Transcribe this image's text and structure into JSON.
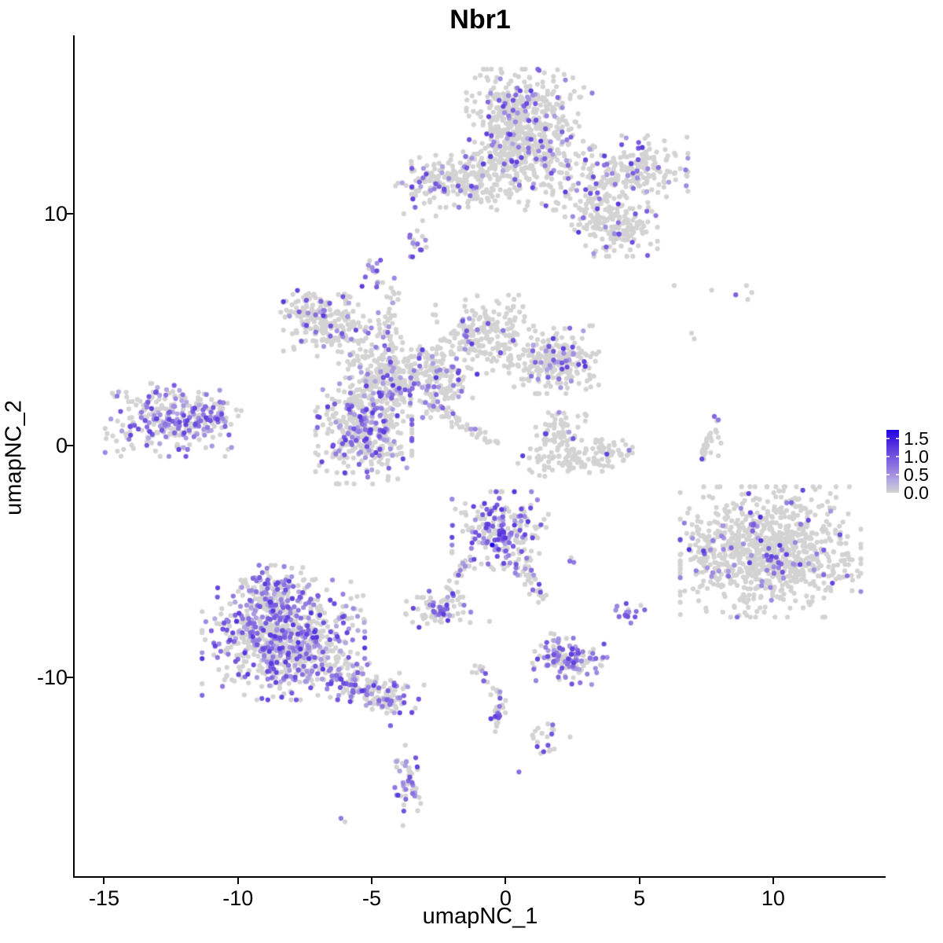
{
  "title": "Nbr1",
  "colors": {
    "background": "#ffffff",
    "axis": "#000000",
    "point_low": "#d3d3d3",
    "point_high": "#2004e8"
  },
  "legend": {
    "max_value": 1.75,
    "ticks": [
      {
        "label": "1.5",
        "value": 1.5
      },
      {
        "label": "1.0",
        "value": 1.0
      },
      {
        "label": "0.5",
        "value": 0.5
      },
      {
        "label": "0.0",
        "value": 0.0
      }
    ]
  },
  "chart_data": {
    "type": "scatter",
    "title": "Nbr1",
    "xlabel": "umapNC_1",
    "ylabel": "umapNC_2",
    "xlim": [
      -16.1,
      14.2
    ],
    "ylim": [
      -18.6,
      17.7
    ],
    "x_ticks": [
      -15,
      -10,
      -5,
      0,
      5,
      10
    ],
    "y_ticks": [
      -10,
      0,
      10
    ],
    "grid": false,
    "legend_position": "right",
    "point_radius_px": 3.1,
    "color_scale": {
      "domain": [
        0,
        1.75
      ],
      "stops": [
        [
          0.0,
          "#d3d3d3"
        ],
        [
          0.35,
          "#b2a6e2"
        ],
        [
          0.7,
          "#9179e0"
        ],
        [
          1.1,
          "#6a4ade"
        ],
        [
          1.45,
          "#4423dd"
        ],
        [
          1.75,
          "#2004e8"
        ]
      ]
    },
    "default_expr_range": [
      0.35,
      1.25
    ],
    "clusters": [
      {
        "name": "top-core",
        "shape": "gauss",
        "cx": 0.9,
        "cy": 13.2,
        "sdx": 1.05,
        "sdy": 1.35,
        "n": 520,
        "frac": 0.13
      },
      {
        "name": "top-core-upper",
        "shape": "gauss",
        "cx": 0.1,
        "cy": 14.4,
        "sdx": 0.6,
        "sdy": 0.75,
        "n": 150,
        "frac": 0.13
      },
      {
        "name": "top-left-arm",
        "shape": "gauss",
        "cx": -2.2,
        "cy": 11.4,
        "sdx": 0.85,
        "sdy": 0.5,
        "n": 170,
        "frac": 0.16
      },
      {
        "name": "top-join",
        "shape": "gauss",
        "cx": -0.7,
        "cy": 11.9,
        "sdx": 0.6,
        "sdy": 0.65,
        "n": 90,
        "frac": 0.1
      },
      {
        "name": "top-right-arm-upper",
        "shape": "gauss",
        "cx": 4.9,
        "cy": 11.8,
        "sdx": 0.85,
        "sdy": 0.7,
        "n": 190,
        "frac": 0.15
      },
      {
        "name": "top-right-arm-lower",
        "shape": "gauss",
        "cx": 4.1,
        "cy": 9.4,
        "sdx": 0.7,
        "sdy": 0.55,
        "n": 150,
        "frac": 0.12
      },
      {
        "name": "top-right-join",
        "shape": "gauss",
        "cx": 3.4,
        "cy": 10.7,
        "sdx": 0.55,
        "sdy": 0.65,
        "n": 90,
        "frac": 0.1
      },
      {
        "name": "blob-upper-small",
        "shape": "gauss",
        "cx": -3.2,
        "cy": 8.7,
        "sdx": 0.25,
        "sdy": 0.3,
        "n": 14,
        "frac": 0.5,
        "expr_range": [
          0.5,
          1.2
        ]
      },
      {
        "name": "blob-upper-small-2",
        "shape": "gauss",
        "cx": -4.8,
        "cy": 7.4,
        "sdx": 0.3,
        "sdy": 0.35,
        "n": 16,
        "frac": 0.6,
        "expr_range": [
          0.5,
          1.2
        ]
      },
      {
        "name": "sparse-top-arm",
        "shape": "dots",
        "points": [
          [
            -3.8,
            10.0,
            0
          ],
          [
            -3.1,
            9.7,
            0
          ],
          [
            -2.6,
            9.9,
            0
          ]
        ]
      },
      {
        "name": "central-strand-up",
        "shape": "strand",
        "x1": -4.2,
        "y1": 6.7,
        "x2": -4.4,
        "y2": 4.7,
        "w": 0.18,
        "n": 30,
        "frac": 0.15
      },
      {
        "name": "central-left-arm",
        "shape": "gauss",
        "cx": -6.5,
        "cy": 5.2,
        "sdx": 0.8,
        "sdy": 0.6,
        "n": 170,
        "frac": 0.13
      },
      {
        "name": "central-left-arm-tip",
        "shape": "gauss",
        "cx": -7.5,
        "cy": 5.9,
        "sdx": 0.4,
        "sdy": 0.35,
        "n": 55,
        "frac": 0.15
      },
      {
        "name": "central-knot",
        "shape": "gauss",
        "cx": -4.1,
        "cy": 3.0,
        "sdx": 0.95,
        "sdy": 0.8,
        "n": 330,
        "frac": 0.2
      },
      {
        "name": "central-upper-right-arm",
        "shape": "gauss",
        "cx": -0.8,
        "cy": 4.8,
        "sdx": 0.85,
        "sdy": 0.75,
        "n": 210,
        "frac": 0.12
      },
      {
        "name": "central-right-blob",
        "shape": "gauss",
        "cx": 1.8,
        "cy": 3.7,
        "sdx": 0.75,
        "sdy": 0.65,
        "n": 240,
        "frac": 0.15
      },
      {
        "name": "central-connector",
        "shape": "gauss",
        "cx": -2.3,
        "cy": 2.9,
        "sdx": 0.55,
        "sdy": 0.6,
        "n": 90,
        "frac": 0.12
      },
      {
        "name": "central-lower-left",
        "shape": "gauss",
        "cx": -5.3,
        "cy": 0.7,
        "sdx": 0.8,
        "sdy": 1.05,
        "n": 390,
        "frac": 0.3
      },
      {
        "name": "central-streak",
        "shape": "strand",
        "x1": -2.9,
        "y1": 1.8,
        "x2": -0.4,
        "y2": 0.1,
        "w": 0.12,
        "n": 50,
        "frac": 0.12
      },
      {
        "name": "left-cluster",
        "shape": "gauss",
        "cx": -12.6,
        "cy": 1.1,
        "sdx": 1.05,
        "sdy": 0.7,
        "n": 270,
        "frac": 0.45,
        "expr_range": [
          0.3,
          1.2
        ]
      },
      {
        "name": "left-cluster-tip",
        "shape": "gauss",
        "cx": -11.0,
        "cy": 1.35,
        "sdx": 0.5,
        "sdy": 0.28,
        "n": 50,
        "frac": 0.5,
        "expr_range": [
          0.3,
          1.2
        ]
      },
      {
        "name": "crescent-left",
        "shape": "gauss",
        "cx": 2.0,
        "cy": 0.7,
        "sdx": 0.45,
        "sdy": 0.4,
        "n": 60,
        "frac": 0.08
      },
      {
        "name": "crescent-bottom",
        "shape": "gauss",
        "cx": 2.6,
        "cy": -0.55,
        "sdx": 0.95,
        "sdy": 0.35,
        "n": 110,
        "frac": 0.05
      },
      {
        "name": "crescent-right",
        "shape": "gauss",
        "cx": 3.9,
        "cy": -0.2,
        "sdx": 0.28,
        "sdy": 0.38,
        "n": 25,
        "frac": 0.05
      },
      {
        "name": "right-arc",
        "shape": "strand",
        "x1": 7.85,
        "y1": 1.1,
        "x2": 7.35,
        "y2": -0.55,
        "w": 0.12,
        "n": 26,
        "frac": 0.1
      },
      {
        "name": "right-arc-cap",
        "shape": "dots",
        "points": [
          [
            7.8,
            1.25,
            0.85
          ],
          [
            7.95,
            1.1,
            0.7
          ]
        ]
      },
      {
        "name": "right-arc-side-dots",
        "shape": "dots",
        "points": [
          [
            7.95,
            0.35,
            0
          ],
          [
            8.05,
            0.1,
            0
          ],
          [
            7.95,
            -0.45,
            0
          ]
        ]
      },
      {
        "name": "right-big",
        "shape": "gauss",
        "cx": 9.9,
        "cy": -4.6,
        "sdx": 1.5,
        "sdy": 1.25,
        "n": 880,
        "frac": 0.09,
        "expr_range": [
          0.4,
          1.4
        ]
      },
      {
        "name": "right-big-appendage",
        "shape": "gauss",
        "cx": 7.4,
        "cy": -4.5,
        "sdx": 0.3,
        "sdy": 0.55,
        "n": 40,
        "frac": 0.1
      },
      {
        "name": "center-small",
        "shape": "gauss",
        "cx": -0.2,
        "cy": -3.8,
        "sdx": 0.8,
        "sdy": 0.8,
        "n": 230,
        "frac": 0.45,
        "expr_range": [
          0.4,
          1.3
        ]
      },
      {
        "name": "center-small-max-dot",
        "shape": "dots",
        "points": [
          [
            -0.5,
            -4.3,
            1.75
          ]
        ]
      },
      {
        "name": "center-strand-left",
        "shape": "strand",
        "x1": -1.3,
        "y1": -5.0,
        "x2": -2.3,
        "y2": -6.3,
        "w": 0.12,
        "n": 22,
        "frac": 0.3
      },
      {
        "name": "center-strand-right",
        "shape": "strand",
        "x1": 0.4,
        "y1": -4.9,
        "x2": 1.3,
        "y2": -6.6,
        "w": 0.15,
        "n": 30,
        "frac": 0.25
      },
      {
        "name": "small-mid-left",
        "shape": "gauss",
        "cx": -2.5,
        "cy": -7.0,
        "sdx": 0.55,
        "sdy": 0.38,
        "n": 75,
        "frac": 0.35
      },
      {
        "name": "small-mid-left-trail",
        "shape": "dots",
        "points": [
          [
            -1.55,
            -6.9,
            0.7
          ],
          [
            -1.3,
            -7.2,
            0.6
          ],
          [
            -0.6,
            -7.6,
            0
          ]
        ]
      },
      {
        "name": "dot-pair-mid",
        "shape": "dots",
        "points": [
          [
            2.4,
            -5.0,
            0.8
          ],
          [
            2.55,
            -5.05,
            0.7
          ],
          [
            2.45,
            -4.85,
            0
          ]
        ]
      },
      {
        "name": "purple-blob-right",
        "shape": "gauss",
        "cx": 4.75,
        "cy": -7.2,
        "sdx": 0.3,
        "sdy": 0.22,
        "n": 16,
        "frac": 0.75,
        "expr_range": [
          0.5,
          1.1
        ]
      },
      {
        "name": "bottom-left-main",
        "shape": "gauss",
        "cx": -8.3,
        "cy": -8.4,
        "sdx": 1.35,
        "sdy": 1.15,
        "n": 780,
        "frac": 0.38,
        "expr_range": [
          0.3,
          1.3
        ]
      },
      {
        "name": "bottom-left-top-lobe",
        "shape": "gauss",
        "cx": -8.6,
        "cy": -6.3,
        "sdx": 0.7,
        "sdy": 0.5,
        "n": 120,
        "frac": 0.35
      },
      {
        "name": "bottom-left-tail",
        "shape": "gauss",
        "cx": -5.4,
        "cy": -10.3,
        "sdx": 1.0,
        "sdy": 0.42,
        "rot": -18,
        "n": 150,
        "frac": 0.35
      },
      {
        "name": "bottom-left-tail-tip",
        "shape": "gauss",
        "cx": -4.4,
        "cy": -11.0,
        "sdx": 0.4,
        "sdy": 0.25,
        "n": 40,
        "frac": 0.4
      },
      {
        "name": "isolated-dot-tail",
        "shape": "dots",
        "points": [
          [
            -4.3,
            -12.1,
            0.9
          ]
        ]
      },
      {
        "name": "bottom-mid-cluster",
        "shape": "gauss",
        "cx": 2.4,
        "cy": -9.2,
        "sdx": 0.62,
        "sdy": 0.5,
        "n": 130,
        "frac": 0.5,
        "expr_range": [
          0.4,
          1.2
        ]
      },
      {
        "name": "bottom-strand-upper",
        "shape": "strand",
        "x1": -1.3,
        "y1": -9.4,
        "x2": -0.1,
        "y2": -10.8,
        "w": 0.15,
        "n": 20,
        "frac": 0.3
      },
      {
        "name": "bottom-strand-lower",
        "shape": "strand",
        "x1": -0.15,
        "y1": -10.8,
        "x2": -0.4,
        "y2": -12.3,
        "w": 0.13,
        "n": 20,
        "frac": 0.3
      },
      {
        "name": "bottom-small-blob",
        "shape": "gauss",
        "cx": 1.8,
        "cy": -12.7,
        "sdx": 0.45,
        "sdy": 0.3,
        "n": 20,
        "frac": 0.3
      },
      {
        "name": "bottom-isolated-dot",
        "shape": "dots",
        "points": [
          [
            0.5,
            -14.1,
            0.8
          ]
        ]
      },
      {
        "name": "bottom-vertical-cluster",
        "shape": "gauss",
        "cx": -3.7,
        "cy": -14.5,
        "sdx": 0.28,
        "sdy": 0.85,
        "n": 45,
        "frac": 0.45
      },
      {
        "name": "bottom-corner-dots",
        "shape": "dots",
        "points": [
          [
            -6.15,
            -16.1,
            0.7
          ],
          [
            -6.0,
            -16.25,
            0
          ]
        ]
      },
      {
        "name": "top-right-scatter",
        "shape": "dots",
        "points": [
          [
            6.3,
            6.9,
            0
          ],
          [
            7.7,
            6.7,
            0
          ],
          [
            8.6,
            6.5,
            0.9
          ],
          [
            9.0,
            6.9,
            0
          ],
          [
            9.2,
            6.6,
            0
          ],
          [
            9.05,
            6.3,
            0
          ],
          [
            6.95,
            4.85,
            0
          ],
          [
            7.05,
            4.6,
            0
          ]
        ]
      }
    ]
  }
}
